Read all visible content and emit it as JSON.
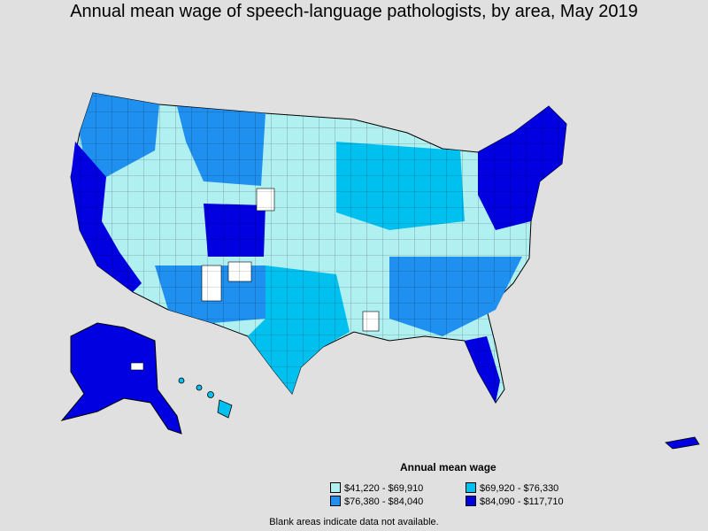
{
  "title": "Annual mean wage of speech-language pathologists, by area, May 2019",
  "legend": {
    "title": "Annual mean wage",
    "items": [
      {
        "label": "$41,220 - $69,910",
        "color": "#b0f0f0"
      },
      {
        "label": "$69,920 - $76,330",
        "color": "#00c0f0"
      },
      {
        "label": "$76,380 - $84,040",
        "color": "#2090f0"
      },
      {
        "label": "$84,090 - $117,710",
        "color": "#0000e0"
      }
    ]
  },
  "note": "Blank areas indicate data not available.",
  "colors": {
    "background": "#e0e0e0",
    "border": "#000000",
    "blank": "#ffffff"
  }
}
